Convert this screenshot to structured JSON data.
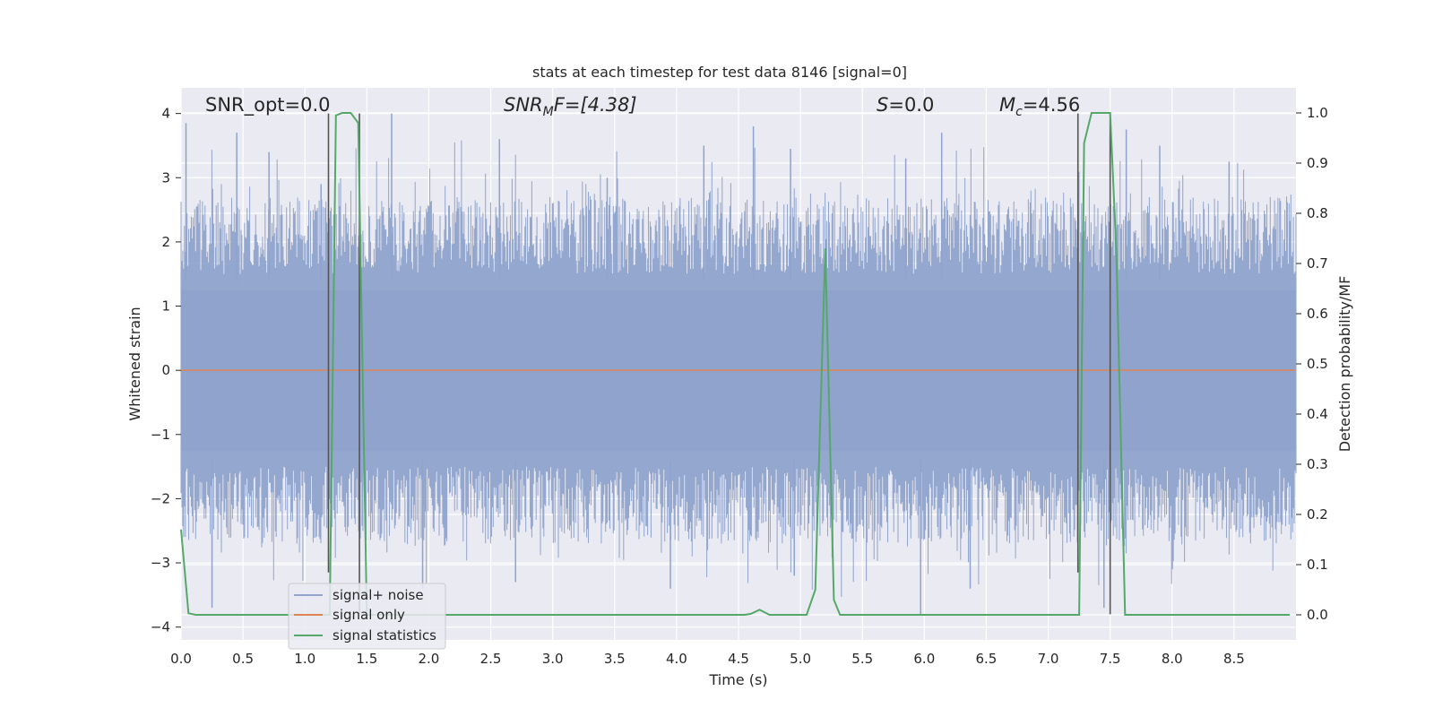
{
  "chart_data": {
    "type": "line",
    "title": "stats at each timestep for test data 8146 [signal=0]",
    "xlabel": "Time (s)",
    "ylabel_left": "Whitened strain",
    "ylabel_right": "Detection probability/MF",
    "xlim": [
      0.0,
      9.0
    ],
    "ylim_left": [
      -4.2,
      4.4
    ],
    "ylim_right": [
      -0.05,
      1.05
    ],
    "x_ticks": [
      "0.0",
      "0.5",
      "1.0",
      "1.5",
      "2.0",
      "2.5",
      "3.0",
      "3.5",
      "4.0",
      "4.5",
      "5.0",
      "5.5",
      "6.0",
      "6.5",
      "7.0",
      "7.5",
      "8.0",
      "8.5"
    ],
    "y_left_ticks": [
      "4",
      "3",
      "2",
      "1",
      "0",
      "−1",
      "−2",
      "−3",
      "−4"
    ],
    "y_right_ticks": [
      "1.0",
      "0.9",
      "0.8",
      "0.7",
      "0.6",
      "0.5",
      "0.4",
      "0.3",
      "0.2",
      "0.1",
      "0.0"
    ],
    "grid": true,
    "legend_position": "lower-left",
    "annotations": {
      "snr_opt": "SNR_opt=0.0",
      "snr_mf_sym": "SNR",
      "snr_mf_sub": "M",
      "snr_mf_rest": "F=[4.38]",
      "s_sym": "S",
      "s_rest": "=0.0",
      "mc_sym": "M",
      "mc_sub": "c",
      "mc_rest": "=4.56"
    },
    "series": [
      {
        "name": "signal+ noise",
        "color": "#8fa3cc",
        "axis": "left",
        "description_range": [
          -3.8,
          4.0
        ],
        "peaks": [
          {
            "x": 0.04,
            "y": 3.85
          },
          {
            "x": 0.45,
            "y": 3.7
          },
          {
            "x": 0.71,
            "y": 3.4
          },
          {
            "x": 1.13,
            "y": 2.9
          },
          {
            "x": 1.7,
            "y": 4.0
          },
          {
            "x": 2.57,
            "y": 3.6
          },
          {
            "x": 3.44,
            "y": 3.0
          },
          {
            "x": 4.22,
            "y": 3.5
          },
          {
            "x": 4.62,
            "y": 3.8
          },
          {
            "x": 4.92,
            "y": 3.45
          },
          {
            "x": 5.85,
            "y": 3.3
          },
          {
            "x": 6.14,
            "y": 3.7
          },
          {
            "x": 7.63,
            "y": 3.75
          },
          {
            "x": 7.9,
            "y": 3.5
          },
          {
            "x": 8.46,
            "y": 3.25
          }
        ],
        "troughs": [
          {
            "x": 0.25,
            "y": -3.7
          },
          {
            "x": 1.95,
            "y": -3.4
          },
          {
            "x": 2.7,
            "y": -3.3
          },
          {
            "x": 3.95,
            "y": -3.4
          },
          {
            "x": 4.95,
            "y": -3.2
          },
          {
            "x": 5.97,
            "y": -3.8
          },
          {
            "x": 6.37,
            "y": -3.4
          },
          {
            "x": 7.45,
            "y": -3.7
          }
        ]
      },
      {
        "name": "signal only",
        "color": "#dd8452",
        "axis": "left",
        "values_description": "flat",
        "x": [
          0.0,
          9.0
        ],
        "y": [
          0.0,
          0.0
        ]
      },
      {
        "name": "signal statistics",
        "color": "#55a868",
        "axis": "right",
        "x": [
          0.0,
          0.06,
          0.12,
          1.17,
          1.2,
          1.25,
          1.3,
          1.37,
          1.43,
          1.5,
          1.55,
          4.55,
          4.6,
          4.67,
          4.75,
          4.8,
          5.05,
          5.12,
          5.2,
          5.27,
          5.32,
          7.25,
          7.29,
          7.35,
          7.5,
          7.55,
          7.62,
          8.95
        ],
        "y": [
          0.17,
          0.003,
          0.0,
          0.0,
          0.0,
          0.995,
          1.0,
          1.0,
          0.98,
          0.0,
          0.0,
          0.0,
          0.002,
          0.01,
          0.0,
          0.0,
          0.0,
          0.05,
          0.73,
          0.03,
          0.0,
          0.0,
          0.94,
          1.0,
          1.0,
          0.72,
          0.0,
          0.0
        ]
      }
    ],
    "vertical_markers": [
      1.19,
      1.44,
      7.24,
      7.5
    ]
  }
}
